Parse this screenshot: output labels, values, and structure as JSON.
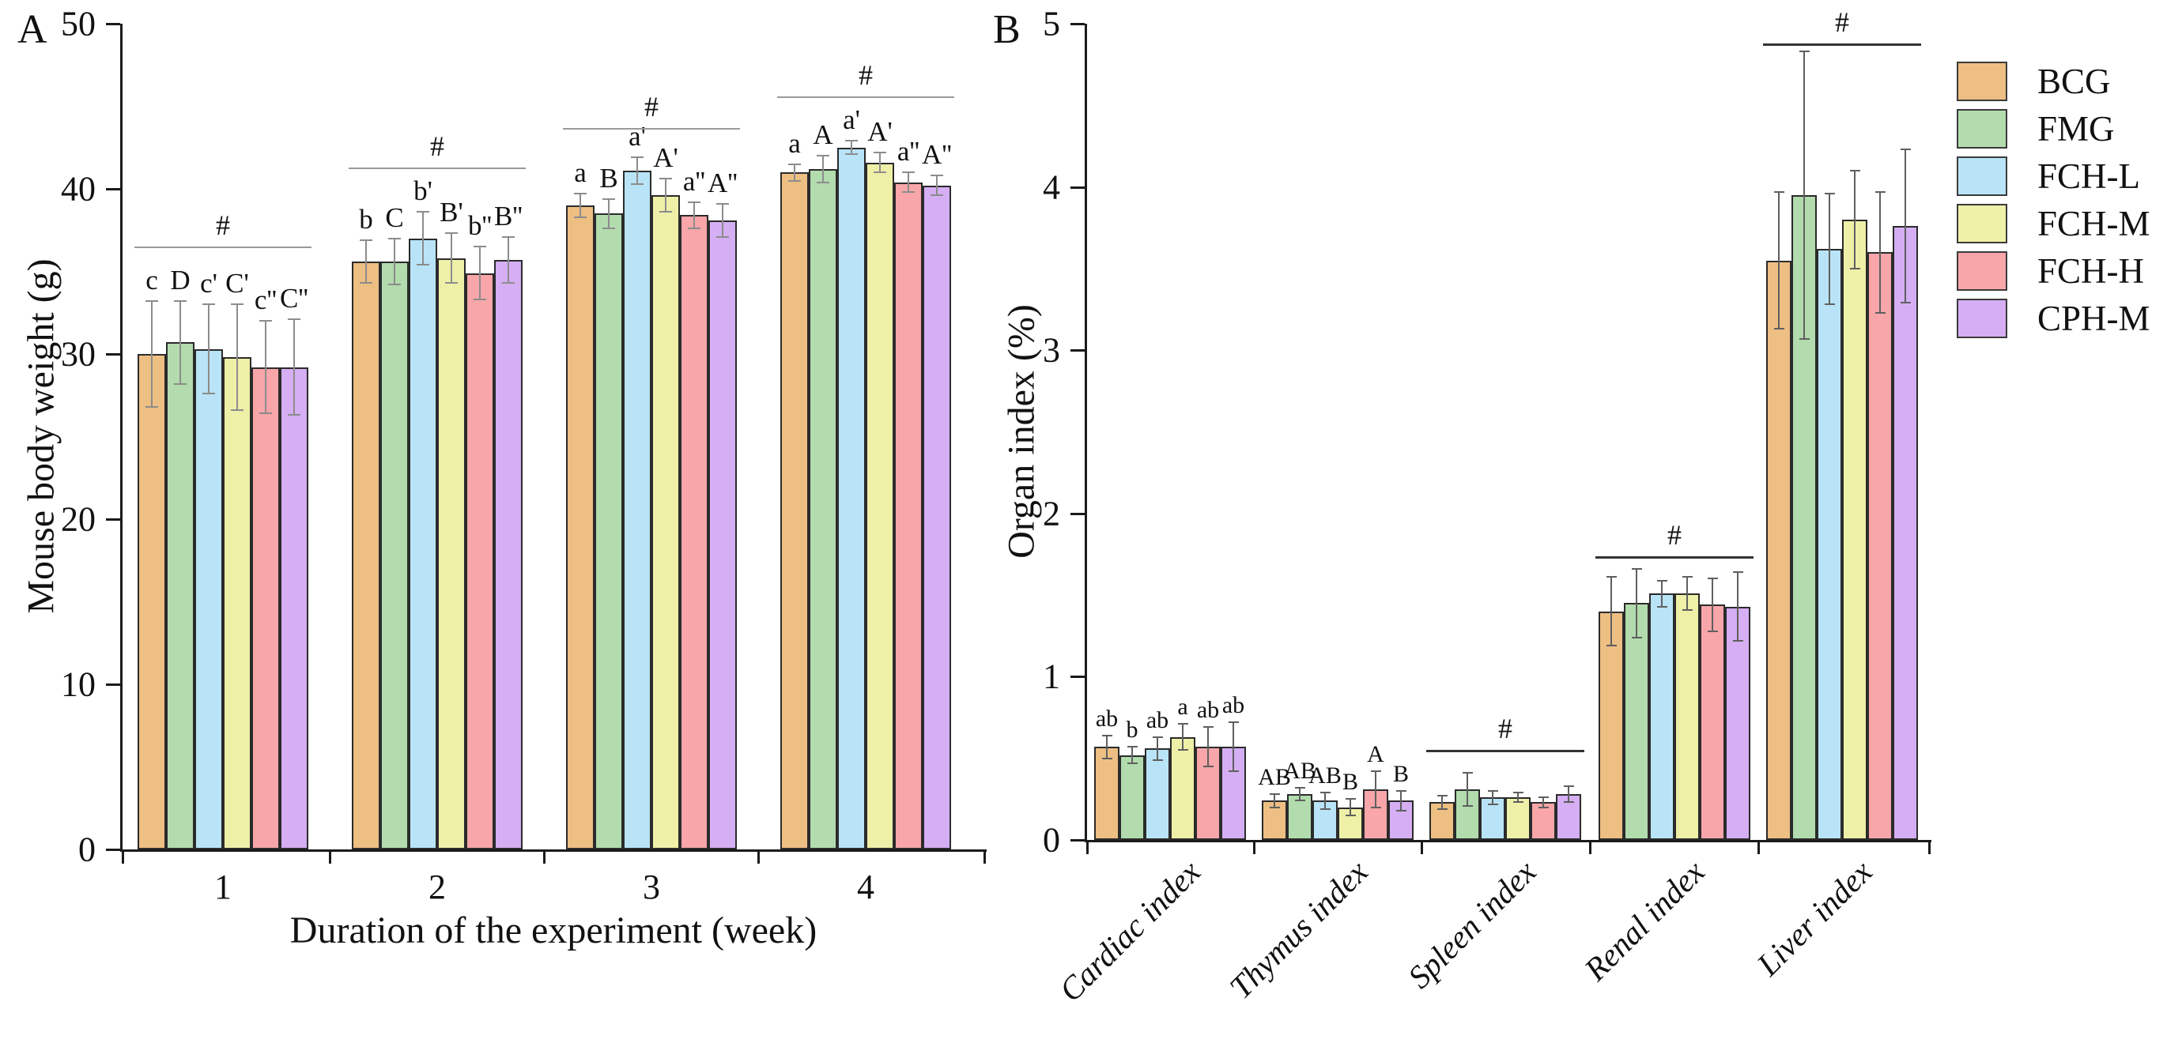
{
  "chart_data": [
    {
      "id": "A",
      "type": "bar",
      "panel_label": "A",
      "xlabel": "Duration of the experiment (week)",
      "ylabel": "Mouse body weight (g)",
      "ylim": [
        0,
        50
      ],
      "yticks": [
        0,
        10,
        20,
        30,
        40,
        50
      ],
      "categories": [
        "1",
        "2",
        "3",
        "4"
      ],
      "grid": false,
      "series": [
        {
          "name": "BCG",
          "color": "#edbf83",
          "values": [
            30.0,
            35.6,
            39.0,
            41.0
          ],
          "errors": [
            3.2,
            1.3,
            0.7,
            0.5
          ],
          "sig_labels": [
            "c",
            "b",
            "a",
            "a"
          ]
        },
        {
          "name": "FMG",
          "color": "#b2dcae",
          "values": [
            30.7,
            35.6,
            38.5,
            41.2
          ],
          "errors": [
            2.5,
            1.4,
            0.9,
            0.8
          ],
          "sig_labels": [
            "D",
            "C",
            "B",
            "A"
          ]
        },
        {
          "name": "FCH-L",
          "color": "#b9e4f7",
          "values": [
            30.3,
            37.0,
            41.1,
            42.5
          ],
          "errors": [
            2.7,
            1.6,
            0.8,
            0.4
          ],
          "sig_labels": [
            "c'",
            "b'",
            "a'",
            "a'"
          ]
        },
        {
          "name": "FCH-M",
          "color": "#eef0a8",
          "values": [
            29.8,
            35.8,
            39.6,
            41.6
          ],
          "errors": [
            3.2,
            1.5,
            1.0,
            0.6
          ],
          "sig_labels": [
            "C'",
            "B'",
            "A'",
            "A'"
          ]
        },
        {
          "name": "FCH-H",
          "color": "#f8a6a9",
          "values": [
            29.2,
            34.9,
            38.4,
            40.4
          ],
          "errors": [
            2.8,
            1.6,
            0.8,
            0.6
          ],
          "sig_labels": [
            "c''",
            "b''",
            "a''",
            "a''"
          ]
        },
        {
          "name": "CPH-M",
          "color": "#d5aef3",
          "values": [
            29.2,
            35.7,
            38.1,
            40.2
          ],
          "errors": [
            2.9,
            1.4,
            1.0,
            0.6
          ],
          "sig_labels": [
            "C''",
            "B''",
            "A''",
            "A''"
          ]
        }
      ],
      "brackets": [
        {
          "category": "1",
          "label": "#",
          "y": 36.5
        },
        {
          "category": "2",
          "label": "#",
          "y": 41.3
        },
        {
          "category": "3",
          "label": "#",
          "y": 43.7
        },
        {
          "category": "4",
          "label": "#",
          "y": 45.6
        }
      ]
    },
    {
      "id": "B",
      "type": "bar",
      "panel_label": "B",
      "xlabel": "",
      "ylabel": "Organ index (%)",
      "ylim": [
        0,
        5
      ],
      "yticks": [
        0,
        1,
        2,
        3,
        4,
        5
      ],
      "categories": [
        "Cardiac index",
        "Thymus index",
        "Spleen index",
        "Renal index",
        "Liver index"
      ],
      "grid": false,
      "series": [
        {
          "name": "BCG",
          "color": "#edbf83",
          "values": [
            0.57,
            0.24,
            0.23,
            1.4,
            3.55
          ],
          "errors": [
            0.07,
            0.04,
            0.04,
            0.21,
            0.42
          ],
          "sig_labels": [
            "ab",
            "AB",
            "",
            "",
            ""
          ]
        },
        {
          "name": "FMG",
          "color": "#b2dcae",
          "values": [
            0.52,
            0.28,
            0.31,
            1.45,
            3.95
          ],
          "errors": [
            0.05,
            0.04,
            0.1,
            0.21,
            0.88
          ],
          "sig_labels": [
            "b",
            "AB",
            "",
            "",
            ""
          ]
        },
        {
          "name": "FCH-L",
          "color": "#b9e4f7",
          "values": [
            0.56,
            0.24,
            0.26,
            1.51,
            3.62
          ],
          "errors": [
            0.07,
            0.05,
            0.04,
            0.08,
            0.34
          ],
          "sig_labels": [
            "ab",
            "AB",
            "",
            "",
            ""
          ]
        },
        {
          "name": "FCH-M",
          "color": "#eef0a8",
          "values": [
            0.63,
            0.2,
            0.26,
            1.51,
            3.8
          ],
          "errors": [
            0.08,
            0.05,
            0.03,
            0.1,
            0.3
          ],
          "sig_labels": [
            "a",
            "B",
            "",
            "",
            ""
          ]
        },
        {
          "name": "FCH-H",
          "color": "#f8a6a9",
          "values": [
            0.57,
            0.31,
            0.23,
            1.44,
            3.6
          ],
          "errors": [
            0.12,
            0.11,
            0.03,
            0.16,
            0.37
          ],
          "sig_labels": [
            "ab",
            "A",
            "",
            "",
            ""
          ]
        },
        {
          "name": "CPH-M",
          "color": "#d5aef3",
          "values": [
            0.57,
            0.24,
            0.28,
            1.43,
            3.76
          ],
          "errors": [
            0.15,
            0.06,
            0.05,
            0.21,
            0.47
          ],
          "sig_labels": [
            "ab",
            "B",
            "",
            "",
            ""
          ]
        }
      ],
      "brackets": [
        {
          "category": "Spleen index",
          "label": "#",
          "y": 0.55
        },
        {
          "category": "Renal index",
          "label": "#",
          "y": 1.74
        },
        {
          "category": "Liver index",
          "label": "#",
          "y": 4.88
        }
      ]
    }
  ],
  "legend": {
    "items": [
      {
        "label": "BCG",
        "color": "#edbf83"
      },
      {
        "label": "FMG",
        "color": "#b2dcae"
      },
      {
        "label": "FCH-L",
        "color": "#b9e4f7"
      },
      {
        "label": "FCH-M",
        "color": "#eef0a8"
      },
      {
        "label": "FCH-H",
        "color": "#f8a6a9"
      },
      {
        "label": "CPH-M",
        "color": "#d5aef3"
      }
    ]
  }
}
